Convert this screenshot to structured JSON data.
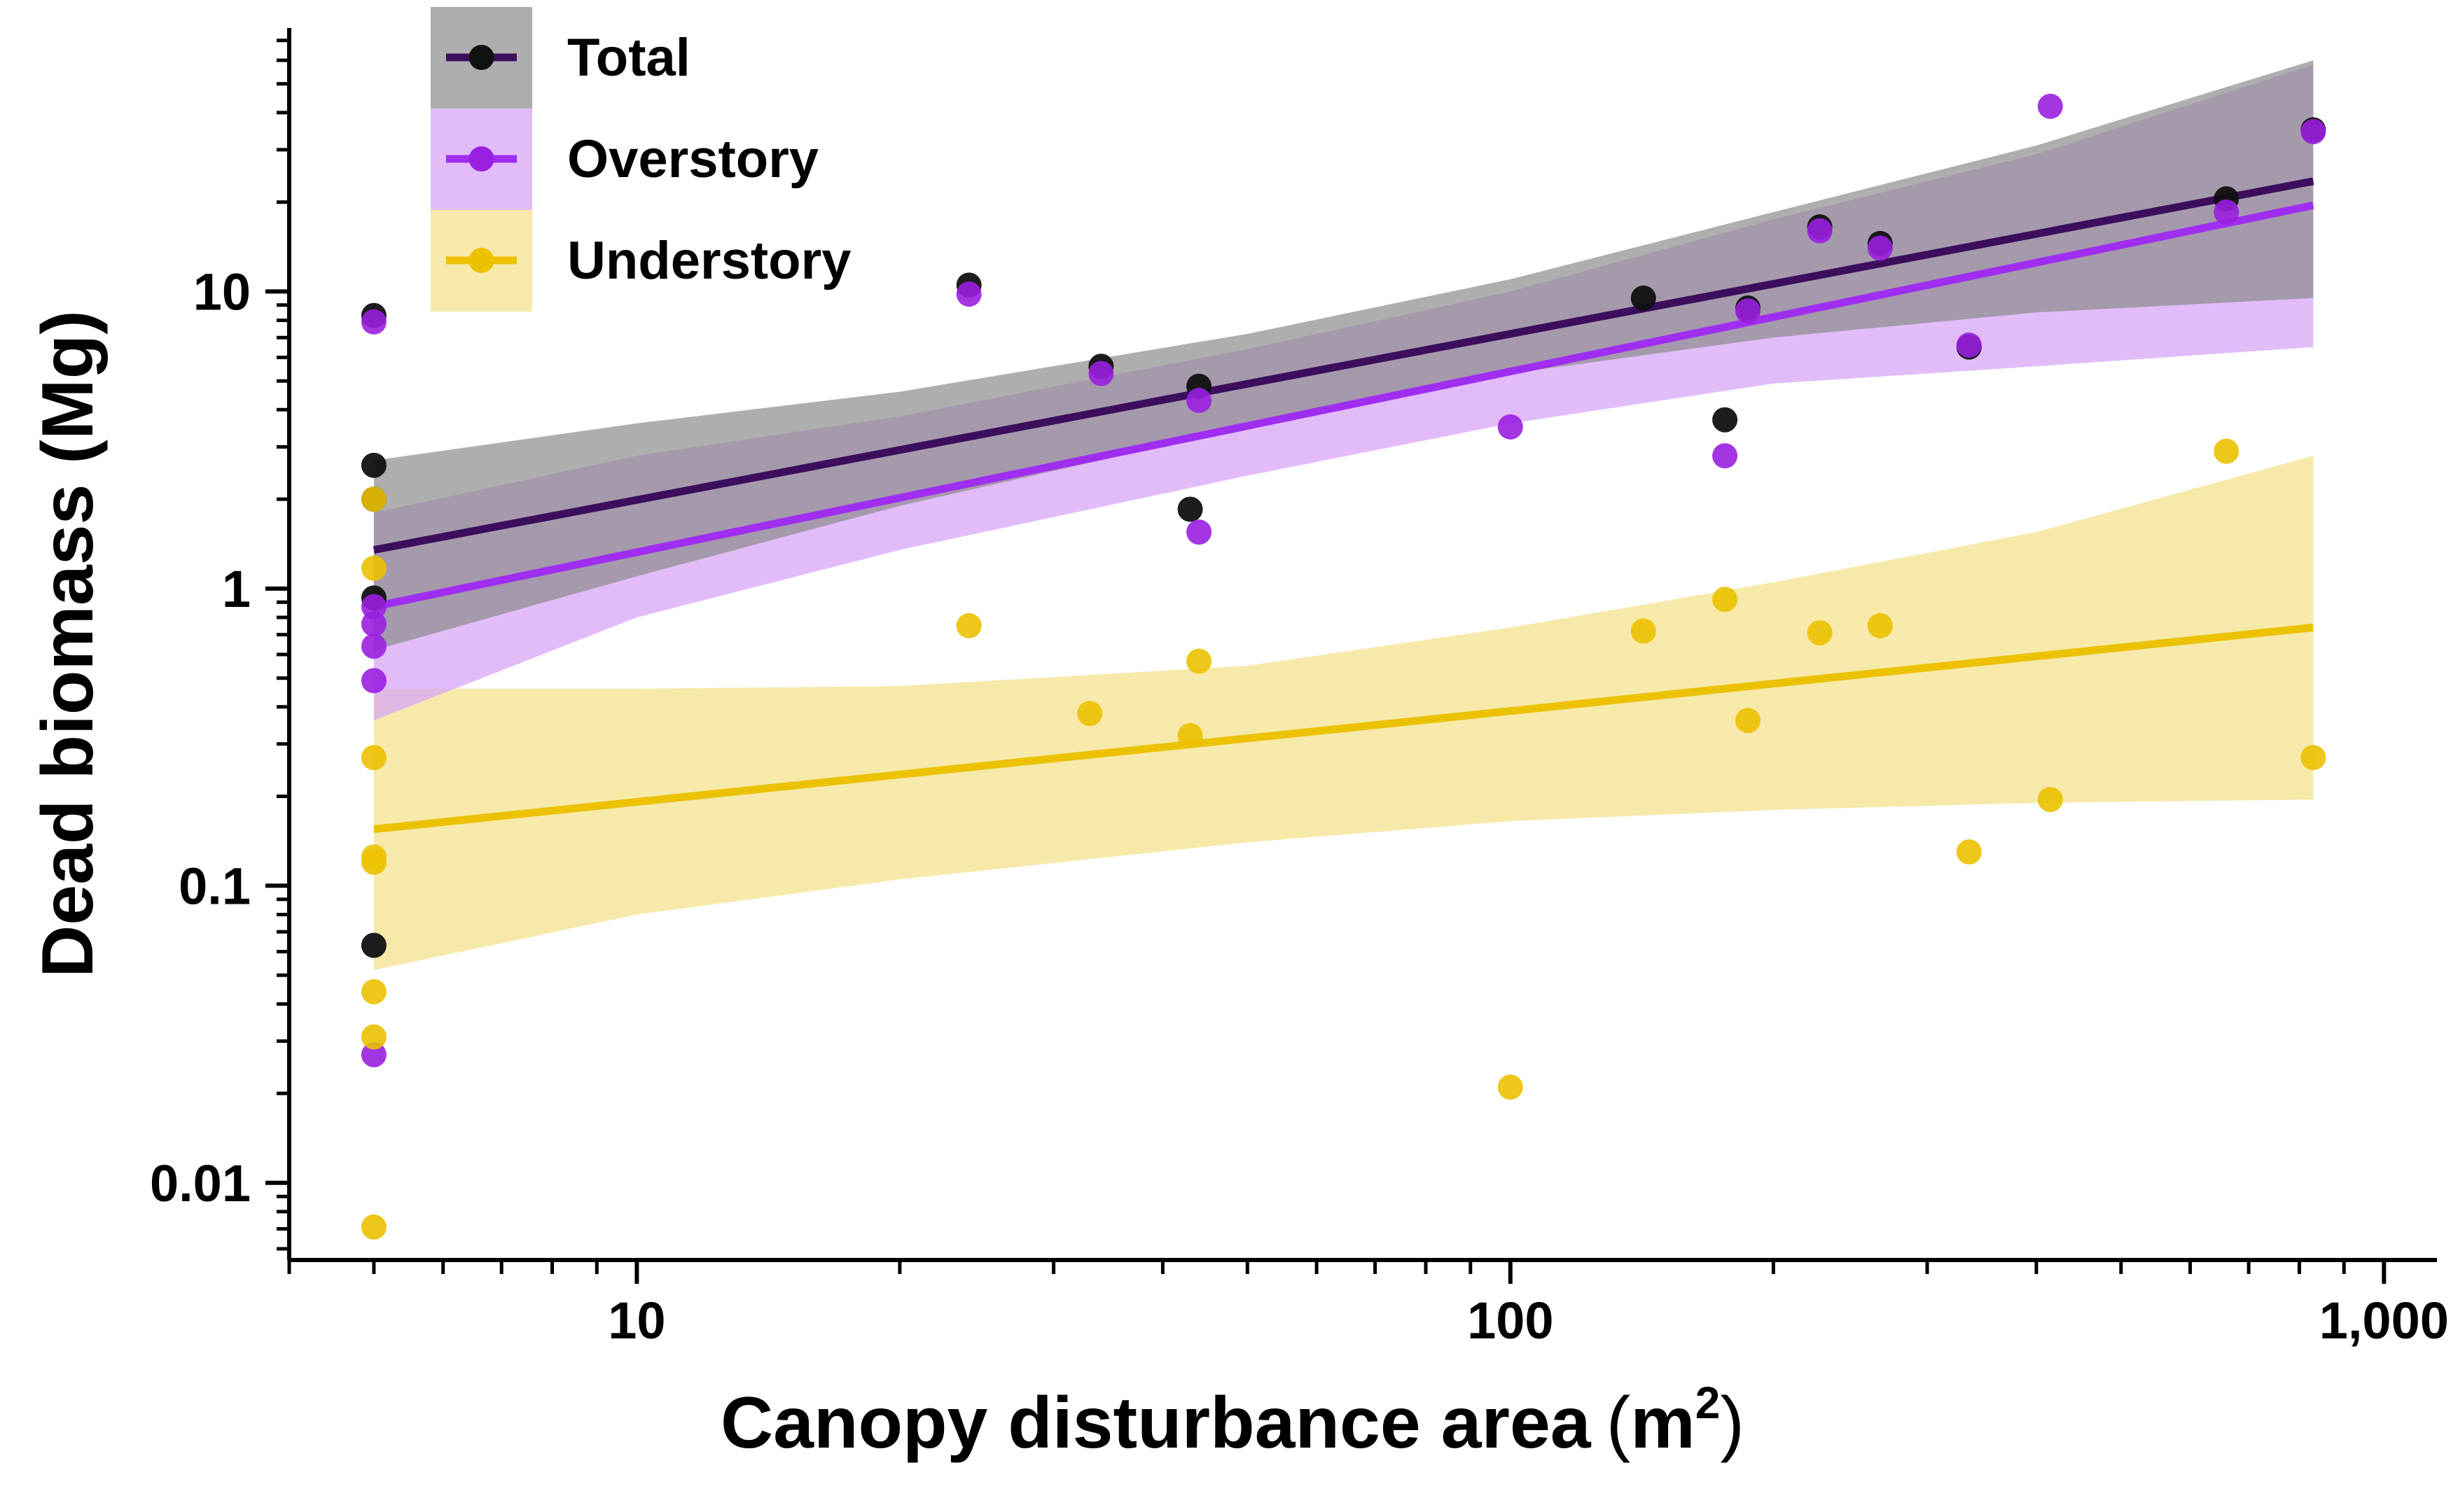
{
  "chart_data": {
    "type": "scatter",
    "xlabel": "Canopy disturbance area",
    "xlabel_unit_base": "m",
    "xlabel_unit_exp": "2",
    "ylabel": "Dead biomass (Mg)",
    "x_scale": "log",
    "y_scale": "log",
    "xlim": [
      4,
      1150
    ],
    "ylim": [
      0.0055,
      75
    ],
    "x_ticks": [
      {
        "value": 10,
        "label": "10"
      },
      {
        "value": 100,
        "label": "100"
      },
      {
        "value": 1000,
        "label": "1,000"
      }
    ],
    "y_ticks": [
      {
        "value": 0.01,
        "label": "0.01"
      },
      {
        "value": 0.1,
        "label": "0.1"
      },
      {
        "value": 1,
        "label": "1"
      },
      {
        "value": 10,
        "label": "10"
      }
    ],
    "grid": false,
    "legend_position": "top-left",
    "series": [
      {
        "name": "Total",
        "color": "#111111",
        "line_color": "#3d0e5e",
        "band_color": "#8c8c8c",
        "fit": {
          "x": [
            5,
            830
          ],
          "y": [
            1.35,
            23.5
          ]
        },
        "band": {
          "x": [
            5,
            10,
            20,
            50,
            100,
            200,
            400,
            830
          ],
          "upper": [
            2.7,
            3.6,
            4.6,
            7.2,
            11.0,
            18.5,
            31.0,
            60.0
          ],
          "lower": [
            0.62,
            1.1,
            1.9,
            3.5,
            5.3,
            7.0,
            8.5,
            9.5
          ]
        },
        "points": [
          [
            5,
            8.3
          ],
          [
            5,
            2.6
          ],
          [
            5,
            2.0
          ],
          [
            5,
            0.93
          ],
          [
            5,
            0.063
          ],
          [
            24,
            10.5
          ],
          [
            34,
            5.6
          ],
          [
            44,
            4.8
          ],
          [
            43,
            1.85
          ],
          [
            142,
            9.5
          ],
          [
            176,
            3.7
          ],
          [
            187,
            8.8
          ],
          [
            226,
            16.5
          ],
          [
            265,
            14.5
          ],
          [
            335,
            6.5
          ],
          [
            660,
            20.5
          ],
          [
            830,
            35.0
          ]
        ]
      },
      {
        "name": "Overstory",
        "color": "#9a1fe0",
        "line_color": "#a02ef0",
        "band_color": "#d7a6f7",
        "fit": {
          "x": [
            5,
            830
          ],
          "y": [
            0.87,
            19.5
          ]
        },
        "band": {
          "x": [
            5,
            10,
            20,
            50,
            100,
            200,
            400,
            830
          ],
          "upper": [
            1.8,
            2.8,
            3.8,
            6.4,
            10.0,
            17.5,
            29.0,
            58.0
          ],
          "lower": [
            0.36,
            0.8,
            1.35,
            2.4,
            3.6,
            4.9,
            5.6,
            6.5
          ]
        },
        "points": [
          [
            5,
            7.9
          ],
          [
            5,
            0.87
          ],
          [
            5,
            0.76
          ],
          [
            5,
            0.64
          ],
          [
            5,
            0.49
          ],
          [
            5,
            0.027
          ],
          [
            24,
            9.8
          ],
          [
            34,
            5.3
          ],
          [
            44,
            4.3
          ],
          [
            44,
            1.55
          ],
          [
            100,
            3.5
          ],
          [
            176,
            2.8
          ],
          [
            187,
            8.6
          ],
          [
            226,
            16.0
          ],
          [
            265,
            14.0
          ],
          [
            335,
            6.6
          ],
          [
            415,
            42.0
          ],
          [
            660,
            18.5
          ],
          [
            830,
            34.5
          ]
        ]
      },
      {
        "name": "Understory",
        "color": "#ebc100",
        "line_color": "#ebc100",
        "band_color": "#f6e59a",
        "fit": {
          "x": [
            5,
            830
          ],
          "y": [
            0.155,
            0.74
          ]
        },
        "band": {
          "x": [
            5,
            10,
            20,
            50,
            100,
            200,
            400,
            830
          ],
          "upper": [
            0.46,
            0.46,
            0.47,
            0.55,
            0.74,
            1.05,
            1.55,
            2.8
          ],
          "lower": [
            0.052,
            0.08,
            0.105,
            0.14,
            0.165,
            0.18,
            0.19,
            0.195
          ]
        },
        "points": [
          [
            5,
            2.0
          ],
          [
            5,
            1.17
          ],
          [
            5,
            0.27
          ],
          [
            5,
            0.125
          ],
          [
            5,
            0.12
          ],
          [
            5,
            0.044
          ],
          [
            5,
            0.031
          ],
          [
            5,
            0.0071
          ],
          [
            24,
            0.75
          ],
          [
            33,
            0.38
          ],
          [
            43,
            0.32
          ],
          [
            44,
            0.57
          ],
          [
            100,
            0.021
          ],
          [
            142,
            0.72
          ],
          [
            176,
            0.92
          ],
          [
            187,
            0.36
          ],
          [
            226,
            0.71
          ],
          [
            265,
            0.75
          ],
          [
            335,
            0.13
          ],
          [
            415,
            0.195
          ],
          [
            660,
            2.9
          ],
          [
            830,
            0.27
          ]
        ]
      }
    ]
  }
}
